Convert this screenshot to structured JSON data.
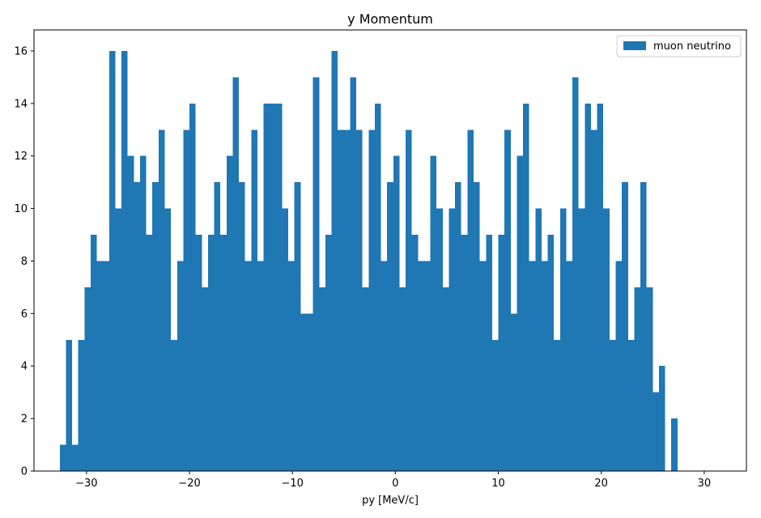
{
  "chart_data": {
    "type": "bar",
    "title": "y Momentum",
    "xlabel": "py [MeV/c]",
    "ylabel": "",
    "xlim": [
      -35.1,
      34.1
    ],
    "ylim": [
      0,
      16.8
    ],
    "x_ticks": [
      -30,
      -20,
      -10,
      0,
      10,
      20,
      30
    ],
    "x_tick_labels": [
      "−30",
      "−20",
      "−10",
      "0",
      "10",
      "20",
      "30"
    ],
    "y_ticks": [
      0,
      2,
      4,
      6,
      8,
      10,
      12,
      14,
      16
    ],
    "y_tick_labels": [
      "0",
      "2",
      "4",
      "6",
      "8",
      "10",
      "12",
      "14",
      "16"
    ],
    "grid": false,
    "legend_position": "top-right",
    "color": "#1f77b4",
    "series": [
      {
        "name": "muon neutrino",
        "bin_start": -32.6,
        "bin_width": 0.6,
        "values": [
          1,
          5,
          1,
          5,
          7,
          9,
          8,
          8,
          16,
          10,
          16,
          12,
          11,
          12,
          9,
          11,
          13,
          10,
          5,
          8,
          13,
          14,
          9,
          7,
          9,
          11,
          9,
          12,
          15,
          11,
          8,
          13,
          8,
          14,
          14,
          14,
          10,
          8,
          11,
          6,
          6,
          15,
          7,
          9,
          16,
          13,
          13,
          15,
          13,
          7,
          13,
          14,
          8,
          11,
          12,
          7,
          13,
          9,
          8,
          8,
          12,
          10,
          7,
          10,
          11,
          9,
          13,
          11,
          8,
          9,
          5,
          9,
          13,
          6,
          12,
          14,
          8,
          10,
          8,
          9,
          5,
          10,
          8,
          15,
          10,
          14,
          13,
          14,
          10,
          5,
          8,
          11,
          5,
          7,
          11,
          7,
          3,
          4,
          0,
          2
        ]
      }
    ]
  }
}
